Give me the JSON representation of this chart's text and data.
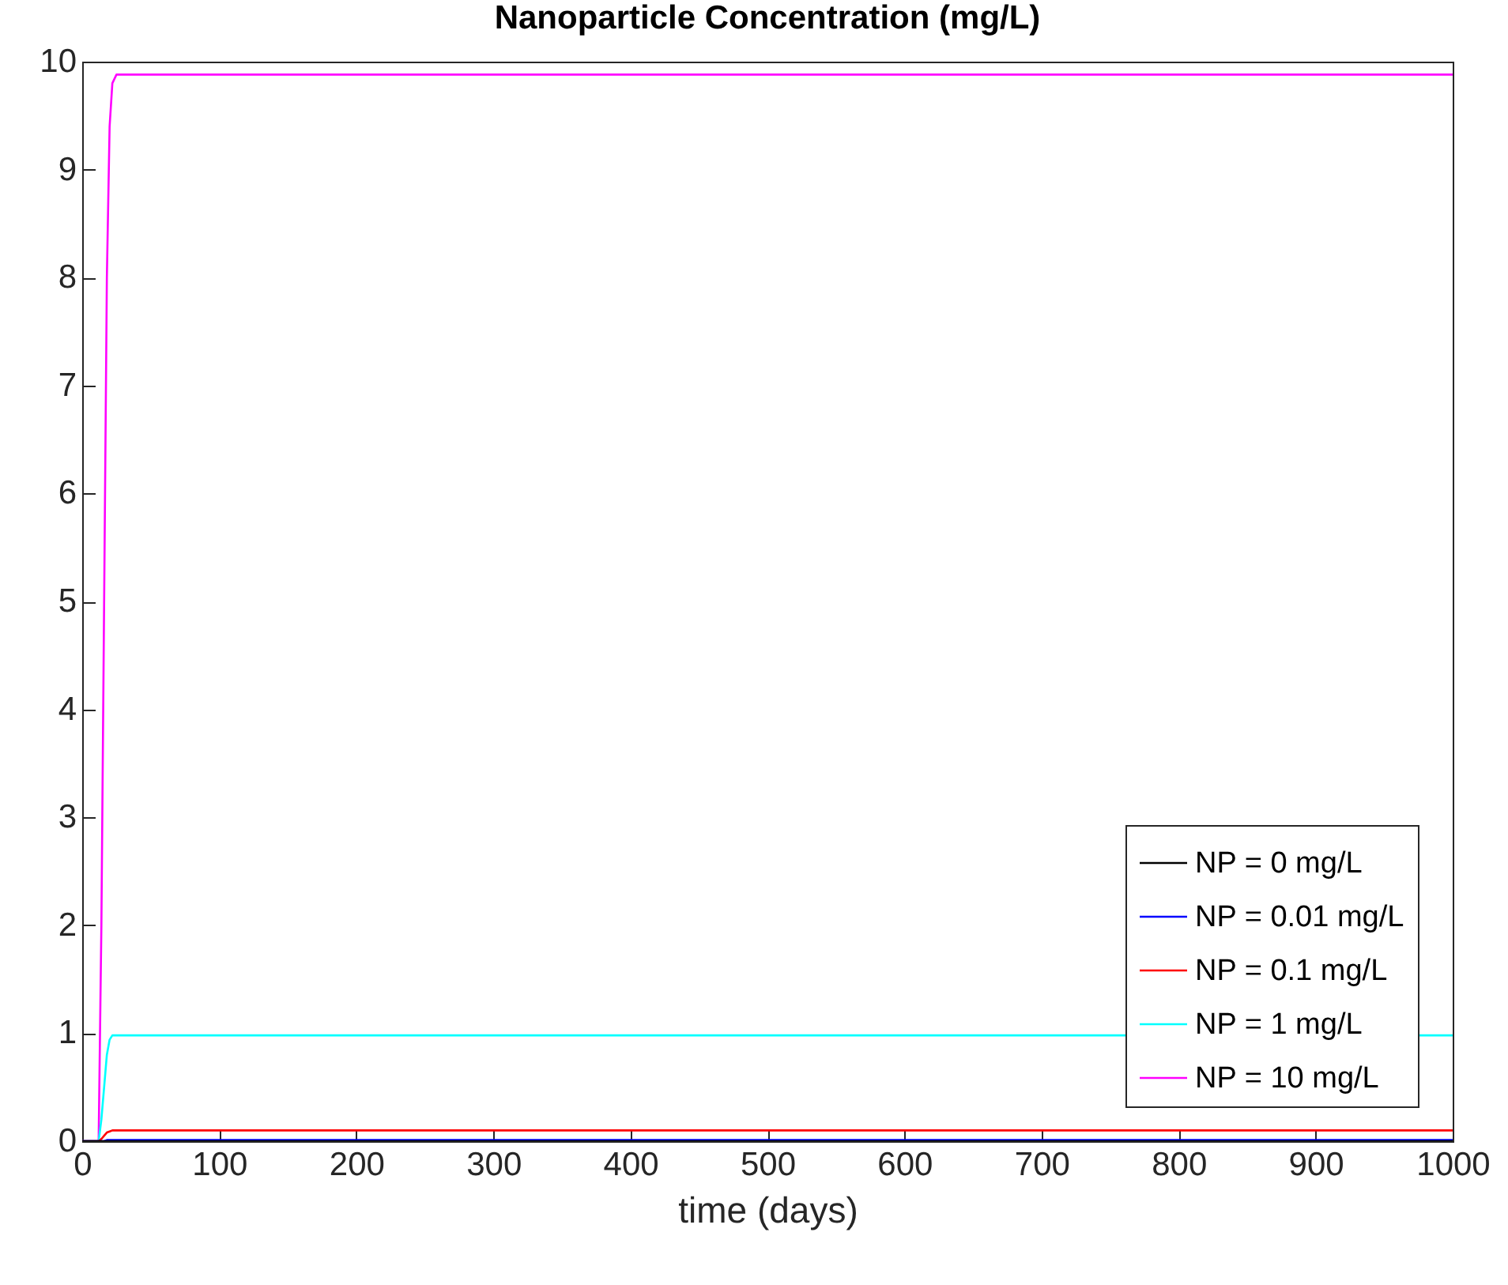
{
  "chart_data": {
    "type": "line",
    "title": "Nanoparticle Concentration (mg/L)",
    "xlabel": "time (days)",
    "x": [
      0,
      12,
      14,
      16,
      18,
      20,
      22,
      25,
      1000
    ],
    "series": [
      {
        "name": "NP = 0 mg/L",
        "color": "#000000",
        "values": [
          0,
          0,
          0,
          0,
          0,
          0,
          0,
          0,
          0
        ]
      },
      {
        "name": "NP = 0.01 mg/L",
        "color": "#0000ff",
        "values": [
          0,
          0,
          0,
          0,
          0.01,
          0.01,
          0.01,
          0.01,
          0.01
        ]
      },
      {
        "name": "NP = 0.1 mg/L",
        "color": "#ff0000",
        "values": [
          0,
          0,
          0.02,
          0.05,
          0.08,
          0.09,
          0.1,
          0.1,
          0.1
        ]
      },
      {
        "name": "NP = 1 mg/L",
        "color": "#00ffff",
        "values": [
          0,
          0,
          0.2,
          0.5,
          0.8,
          0.94,
          0.98,
          0.98,
          0.98
        ]
      },
      {
        "name": "NP = 10 mg/L",
        "color": "#ff00ff",
        "values": [
          0,
          0,
          2,
          5,
          8,
          9.4,
          9.8,
          9.88,
          9.88
        ]
      }
    ],
    "xlim": [
      0,
      1000
    ],
    "xticks": [
      0,
      100,
      200,
      300,
      400,
      500,
      600,
      700,
      800,
      900,
      1000
    ],
    "ylim": [
      0,
      10
    ],
    "yticks": [
      0,
      1,
      2,
      3,
      4,
      5,
      6,
      7,
      8,
      9,
      10
    ],
    "grid": false,
    "legend": "bottom right",
    "line_style": "solid",
    "marker": "none"
  }
}
